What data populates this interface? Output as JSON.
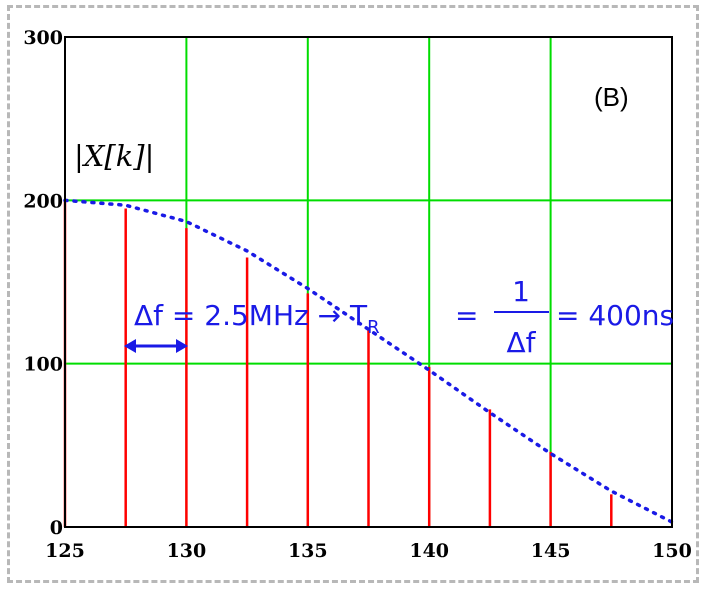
{
  "chart_data": {
    "type": "stem",
    "panel_label": "(B)",
    "ylabel": "|X[k]|",
    "xlim": [
      125,
      150
    ],
    "ylim": [
      0,
      300
    ],
    "xticks": [
      125,
      130,
      135,
      140,
      145,
      150
    ],
    "yticks": [
      0,
      100,
      200,
      300
    ],
    "grid": true,
    "series": [
      {
        "style": "stem",
        "color": "#ff0000",
        "x": [
          125,
          127.5,
          130,
          132.5,
          135,
          137.5,
          140,
          142.5,
          145,
          147.5
        ],
        "values": [
          200,
          195,
          183,
          165,
          143,
          122,
          98,
          72,
          46,
          20
        ]
      },
      {
        "style": "dotted",
        "color": "#1a1ae6",
        "x": [
          125,
          127.5,
          130,
          132.5,
          135,
          137.5,
          140,
          142.5,
          145,
          147.5,
          150
        ],
        "values": [
          200,
          197,
          187,
          169,
          146,
          121,
          96,
          70,
          45,
          22,
          3
        ]
      }
    ],
    "annotation": {
      "delta_f": "Δf = 2.5MHz → T",
      "subscript": "R",
      "equals": "=",
      "numerator": "1",
      "denominator": "Δf",
      "result": "= 400ns"
    },
    "colors": {
      "grid": "#00dd00",
      "stem": "#ff0000",
      "envelope": "#1a1ae6",
      "axes": "#000000"
    }
  }
}
